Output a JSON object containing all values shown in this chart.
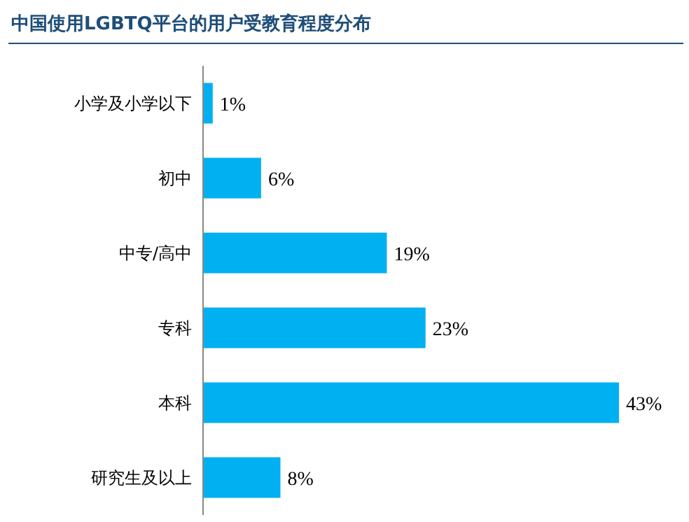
{
  "chart_data": {
    "type": "bar",
    "orientation": "horizontal",
    "title": "中国使用LGBTQ平台的用户受教育程度分布",
    "categories": [
      "小学及小学以下",
      "初中",
      "中专/高中",
      "专科",
      "本科",
      "研究生及以上"
    ],
    "values": [
      1,
      6,
      19,
      23,
      43,
      8
    ],
    "value_labels": [
      "1%",
      "6%",
      "19%",
      "23%",
      "43%",
      "8%"
    ],
    "color": "#00b0f0"
  }
}
